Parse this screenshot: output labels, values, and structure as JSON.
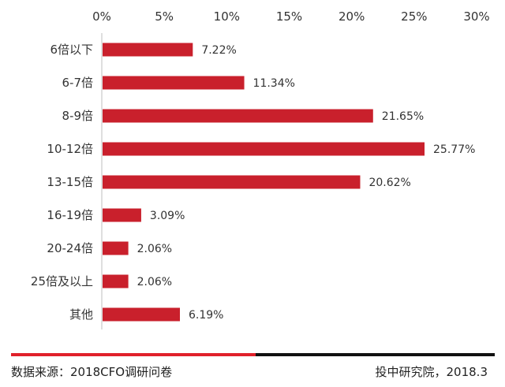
{
  "chart_data": {
    "type": "bar",
    "orientation": "horizontal",
    "categories": [
      "6倍以下",
      "6-7倍",
      "8-9倍",
      "10-12倍",
      "13-15倍",
      "16-19倍",
      "20-24倍",
      "25倍及以上",
      "其他"
    ],
    "values": [
      7.22,
      11.34,
      21.65,
      25.77,
      20.62,
      3.09,
      2.06,
      2.06,
      6.19
    ],
    "data_labels": [
      "7.22%",
      "11.34%",
      "21.65%",
      "25.77%",
      "20.62%",
      "3.09%",
      "2.06%",
      "2.06%",
      "6.19%"
    ],
    "x_ticks": [
      "0%",
      "5%",
      "10%",
      "15%",
      "20%",
      "25%",
      "30%"
    ],
    "xlim": [
      0,
      30
    ],
    "axis_position": "top",
    "grid": false,
    "legend": false,
    "bar_color": "#c9202c"
  },
  "footer": {
    "source": "数据来源：2018CFO调研问卷",
    "credit": "投中研究院，2018.3",
    "line_colors": [
      "#e0202a",
      "#111111"
    ]
  }
}
